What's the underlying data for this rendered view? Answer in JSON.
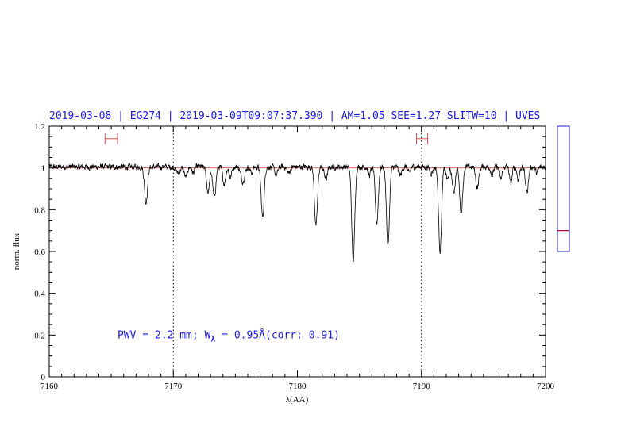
{
  "chart_data": {
    "type": "line",
    "title": "2019-03-08 | EG274 | 2019-03-09T09:07:37.390 | AM=1.05 SEE=1.27 SLITW=10 | UVES",
    "xlabel": "λ(AA)",
    "ylabel": "norm. flux",
    "xlim": [
      7160,
      7200
    ],
    "ylim": [
      0,
      1.2
    ],
    "x_ticks": [
      7160,
      7170,
      7180,
      7190,
      7200
    ],
    "y_ticks": [
      0,
      0.2,
      0.4,
      0.6,
      0.8,
      1,
      1.2
    ],
    "x_tick_labels": [
      "7160",
      "7170",
      "7180",
      "7190",
      "7200"
    ],
    "y_tick_labels": [
      "0",
      "0.2",
      "0.4",
      "0.6",
      "0.8",
      "1",
      "1.2"
    ],
    "grid": false,
    "reference_lines": {
      "vertical_dotted_x": [
        7170,
        7190
      ],
      "horizontal_y": 1.0
    },
    "continuum_ranges": [
      [
        7164.5,
        7165.5
      ],
      [
        7189.6,
        7190.5
      ]
    ],
    "continuum_range_y": 1.14,
    "side_indicator": {
      "ylim": [
        0.6,
        1.2
      ],
      "marker_y": 0.7
    },
    "annotation": {
      "pwv_text": "PWV = 2.2 mm; W",
      "sub": "λ",
      "rest": " = 0.95Å(corr: 0.91)",
      "x": 7165.5,
      "y": 0.2
    },
    "continuum_level": 1.005,
    "absorption_lines": [
      {
        "center": 7167.8,
        "depth": 0.17,
        "width": 0.12
      },
      {
        "center": 7170.4,
        "depth": 0.03,
        "width": 0.15
      },
      {
        "center": 7171.0,
        "depth": 0.05,
        "width": 0.12
      },
      {
        "center": 7171.6,
        "depth": 0.03,
        "width": 0.1
      },
      {
        "center": 7172.8,
        "depth": 0.12,
        "width": 0.12
      },
      {
        "center": 7173.3,
        "depth": 0.15,
        "width": 0.12
      },
      {
        "center": 7174.1,
        "depth": 0.08,
        "width": 0.12
      },
      {
        "center": 7174.6,
        "depth": 0.05,
        "width": 0.1
      },
      {
        "center": 7175.6,
        "depth": 0.07,
        "width": 0.15
      },
      {
        "center": 7176.3,
        "depth": 0.03,
        "width": 0.1
      },
      {
        "center": 7177.2,
        "depth": 0.24,
        "width": 0.12
      },
      {
        "center": 7178.3,
        "depth": 0.04,
        "width": 0.12
      },
      {
        "center": 7179.3,
        "depth": 0.03,
        "width": 0.12
      },
      {
        "center": 7181.5,
        "depth": 0.28,
        "width": 0.12
      },
      {
        "center": 7182.3,
        "depth": 0.06,
        "width": 0.12
      },
      {
        "center": 7184.5,
        "depth": 0.45,
        "width": 0.12
      },
      {
        "center": 7185.8,
        "depth": 0.04,
        "width": 0.1
      },
      {
        "center": 7186.4,
        "depth": 0.27,
        "width": 0.12
      },
      {
        "center": 7187.3,
        "depth": 0.38,
        "width": 0.12
      },
      {
        "center": 7188.3,
        "depth": 0.04,
        "width": 0.12
      },
      {
        "center": 7189.0,
        "depth": 0.03,
        "width": 0.1
      },
      {
        "center": 7190.8,
        "depth": 0.03,
        "width": 0.12
      },
      {
        "center": 7191.5,
        "depth": 0.4,
        "width": 0.12
      },
      {
        "center": 7192.1,
        "depth": 0.06,
        "width": 0.12
      },
      {
        "center": 7192.6,
        "depth": 0.12,
        "width": 0.12
      },
      {
        "center": 7193.2,
        "depth": 0.22,
        "width": 0.12
      },
      {
        "center": 7194.5,
        "depth": 0.1,
        "width": 0.12
      },
      {
        "center": 7195.7,
        "depth": 0.04,
        "width": 0.1
      },
      {
        "center": 7196.4,
        "depth": 0.06,
        "width": 0.1
      },
      {
        "center": 7197.2,
        "depth": 0.08,
        "width": 0.1
      },
      {
        "center": 7197.8,
        "depth": 0.06,
        "width": 0.1
      },
      {
        "center": 7198.5,
        "depth": 0.12,
        "width": 0.12
      },
      {
        "center": 7199.3,
        "depth": 0.03,
        "width": 0.1
      }
    ]
  }
}
